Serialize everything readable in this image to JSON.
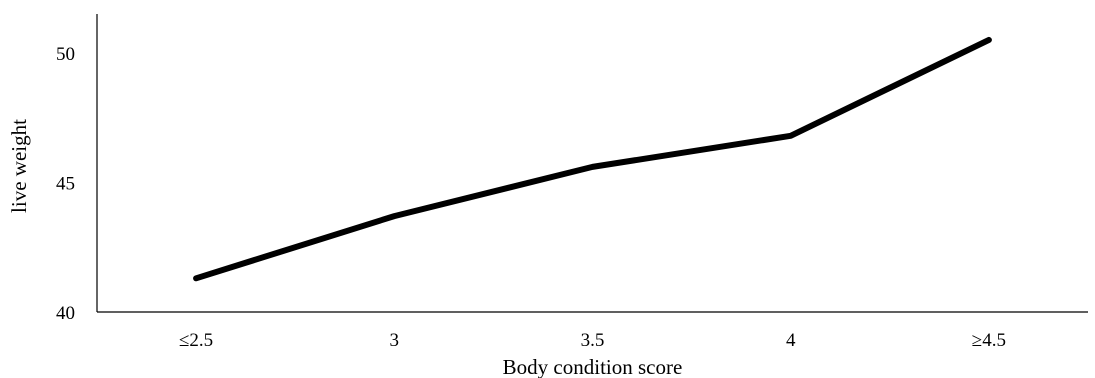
{
  "chart_data": {
    "type": "line",
    "title": "",
    "xlabel": "Body condition score",
    "ylabel": "live weight",
    "categories": [
      "≤2.5",
      "3",
      "3.5",
      "4",
      "≥4.5"
    ],
    "series": [
      {
        "values": [
          41.3,
          43.7,
          45.6,
          46.8,
          50.5
        ]
      }
    ],
    "ylim": [
      40,
      51.5
    ],
    "yticks": [
      40,
      45,
      50
    ],
    "grid": false,
    "legend": "none",
    "line_color": "#000000"
  }
}
